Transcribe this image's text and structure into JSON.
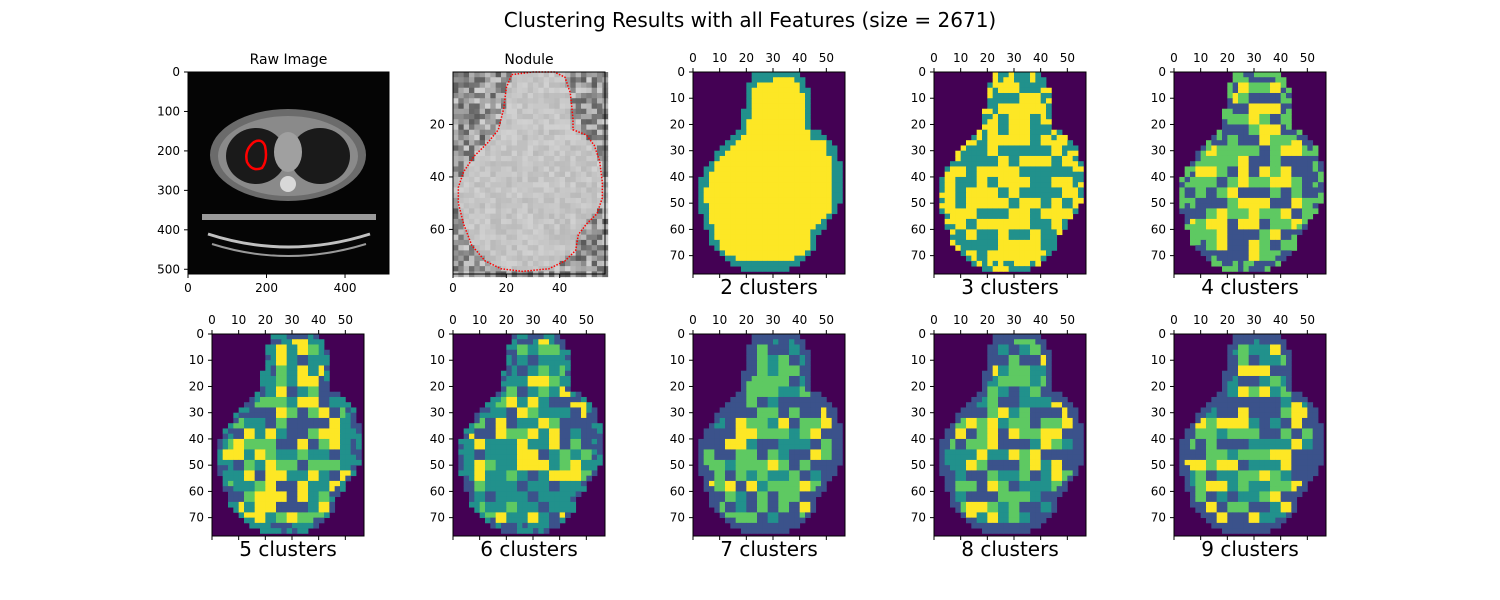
{
  "figure": {
    "suptitle": "Clustering Results with all Features (size = 2671)"
  },
  "colors": {
    "outline": "#ff0000",
    "viridis_purple": "#440154",
    "viridis_blue": "#3b528b",
    "viridis_teal": "#21918c",
    "viridis_green": "#5ec962",
    "viridis_yellow": "#fde725"
  },
  "chart_data": [
    {
      "type": "image",
      "title": "Raw Image",
      "xlabel": "",
      "xticks": [
        "0",
        "200",
        "400"
      ],
      "yticks": [
        "0",
        "100",
        "200",
        "300",
        "400",
        "500"
      ],
      "xlim": [
        0,
        512
      ],
      "ylim": [
        512,
        0
      ],
      "xaxis_position": "bottom",
      "content": "CT scan (grayscale) with red nodule outline",
      "colormap": "gray"
    },
    {
      "type": "image",
      "title": "Nodule",
      "xlabel": "",
      "xticks": [
        "0",
        "20",
        "40"
      ],
      "yticks": [
        "20",
        "40",
        "60"
      ],
      "xlim": [
        0,
        57
      ],
      "ylim": [
        77,
        0
      ],
      "xaxis_position": "bottom",
      "content": "Nodule crop (grayscale) with red dotted contour",
      "colormap": "gray"
    },
    {
      "type": "heatmap",
      "title": "",
      "xlabel": "2 clusters",
      "n_clusters": 2,
      "colormap": "viridis",
      "xticks": [
        "0",
        "10",
        "20",
        "30",
        "40",
        "50"
      ],
      "yticks": [
        "0",
        "10",
        "20",
        "30",
        "40",
        "50",
        "60",
        "70"
      ],
      "xlim": [
        0,
        57
      ],
      "ylim": [
        77,
        0
      ],
      "xaxis_position": "top"
    },
    {
      "type": "heatmap",
      "title": "",
      "xlabel": "3 clusters",
      "n_clusters": 3,
      "colormap": "viridis",
      "xticks": [
        "0",
        "10",
        "20",
        "30",
        "40",
        "50"
      ],
      "yticks": [
        "0",
        "10",
        "20",
        "30",
        "40",
        "50",
        "60",
        "70"
      ],
      "xlim": [
        0,
        57
      ],
      "ylim": [
        77,
        0
      ],
      "xaxis_position": "top"
    },
    {
      "type": "heatmap",
      "title": "",
      "xlabel": "4 clusters",
      "n_clusters": 4,
      "colormap": "viridis",
      "xticks": [
        "0",
        "10",
        "20",
        "30",
        "40",
        "50"
      ],
      "yticks": [
        "0",
        "10",
        "20",
        "30",
        "40",
        "50",
        "60",
        "70"
      ],
      "xlim": [
        0,
        57
      ],
      "ylim": [
        77,
        0
      ],
      "xaxis_position": "top"
    },
    {
      "type": "heatmap",
      "title": "",
      "xlabel": "5 clusters",
      "n_clusters": 5,
      "colormap": "viridis",
      "xticks": [
        "0",
        "10",
        "20",
        "30",
        "40",
        "50"
      ],
      "yticks": [
        "0",
        "10",
        "20",
        "30",
        "40",
        "50",
        "60",
        "70"
      ],
      "xlim": [
        0,
        57
      ],
      "ylim": [
        77,
        0
      ],
      "xaxis_position": "top"
    },
    {
      "type": "heatmap",
      "title": "",
      "xlabel": "6 clusters",
      "n_clusters": 6,
      "colormap": "viridis",
      "xticks": [
        "0",
        "10",
        "20",
        "30",
        "40",
        "50"
      ],
      "yticks": [
        "0",
        "10",
        "20",
        "30",
        "40",
        "50",
        "60",
        "70"
      ],
      "xlim": [
        0,
        57
      ],
      "ylim": [
        77,
        0
      ],
      "xaxis_position": "top"
    },
    {
      "type": "heatmap",
      "title": "",
      "xlabel": "7 clusters",
      "n_clusters": 7,
      "colormap": "viridis",
      "xticks": [
        "0",
        "10",
        "20",
        "30",
        "40",
        "50"
      ],
      "yticks": [
        "0",
        "10",
        "20",
        "30",
        "40",
        "50",
        "60",
        "70"
      ],
      "xlim": [
        0,
        57
      ],
      "ylim": [
        77,
        0
      ],
      "xaxis_position": "top"
    },
    {
      "type": "heatmap",
      "title": "",
      "xlabel": "8 clusters",
      "n_clusters": 8,
      "colormap": "viridis",
      "xticks": [
        "0",
        "10",
        "20",
        "30",
        "40",
        "50"
      ],
      "yticks": [
        "0",
        "10",
        "20",
        "30",
        "40",
        "50",
        "60",
        "70"
      ],
      "xlim": [
        0,
        57
      ],
      "ylim": [
        77,
        0
      ],
      "xaxis_position": "top"
    },
    {
      "type": "heatmap",
      "title": "",
      "xlabel": "9 clusters",
      "n_clusters": 9,
      "colormap": "viridis",
      "xticks": [
        "0",
        "10",
        "20",
        "30",
        "40",
        "50"
      ],
      "yticks": [
        "0",
        "10",
        "20",
        "30",
        "40",
        "50",
        "60",
        "70"
      ],
      "xlim": [
        0,
        57
      ],
      "ylim": [
        77,
        0
      ],
      "xaxis_position": "top"
    }
  ]
}
